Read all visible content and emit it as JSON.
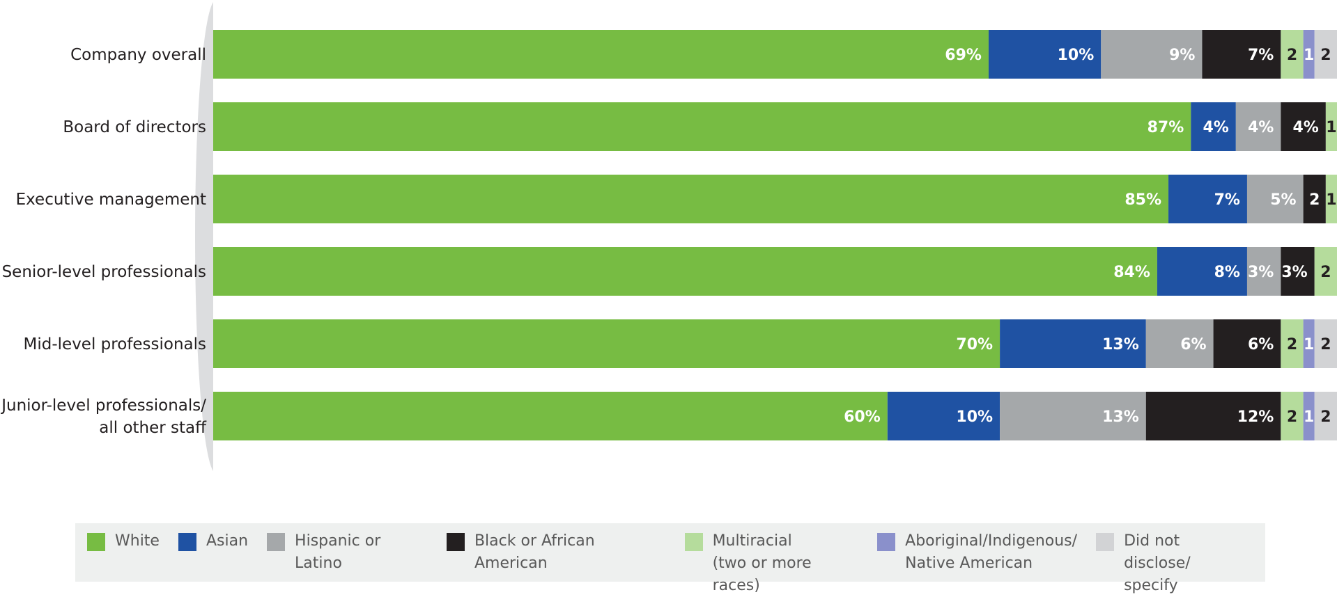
{
  "chart_data": {
    "type": "bar",
    "orientation": "horizontal",
    "stacked": true,
    "title": "",
    "xlabel": "",
    "ylabel": "",
    "categories": [
      "Company overall",
      "Board of directors",
      "Executive management",
      "Senior-level professionals",
      "Mid-level professionals",
      "Junior-level professionals/\nall other staff"
    ],
    "series": [
      {
        "name": "White",
        "color": "#77bc43",
        "label_color": "#ffffff",
        "values": [
          69,
          87,
          85,
          84,
          70,
          60
        ],
        "labels": [
          "69%",
          "87%",
          "85%",
          "84%",
          "70%",
          "60%"
        ]
      },
      {
        "name": "Asian",
        "color": "#1f52a3",
        "label_color": "#ffffff",
        "values": [
          10,
          4,
          7,
          8,
          13,
          10
        ],
        "labels": [
          "10%",
          "4%",
          "7%",
          "8%",
          "13%",
          "10%"
        ]
      },
      {
        "name": "Hispanic or Latino",
        "color": "#a5a8aa",
        "label_color": "#ffffff",
        "values": [
          9,
          4,
          5,
          3,
          6,
          13
        ],
        "labels": [
          "9%",
          "4%",
          "5%",
          "3%",
          "6%",
          "13%"
        ]
      },
      {
        "name": "Black or African American",
        "color": "#231f20",
        "label_color": "#ffffff",
        "values": [
          7,
          4,
          2,
          3,
          6,
          12
        ],
        "labels": [
          "7%",
          "4%",
          "2",
          "3%",
          "6%",
          "12%"
        ]
      },
      {
        "name": "Multiracial\n(two or more races)",
        "color": "#b5dc9c",
        "label_color": "#231f20",
        "values": [
          2,
          1,
          1,
          2,
          2,
          2
        ],
        "labels": [
          "2",
          "1",
          "1",
          "2",
          "2",
          "2"
        ]
      },
      {
        "name": "Aboriginal/Indigenous/\nNative American",
        "color": "#8a90cb",
        "label_color": "#ffffff",
        "values": [
          1,
          0,
          0,
          0,
          1,
          1
        ],
        "labels": [
          "1",
          "",
          "",
          "",
          "1",
          "1"
        ]
      },
      {
        "name": "Did not disclose/\nspecify",
        "color": "#d2d3d5",
        "label_color": "#231f20",
        "values": [
          2,
          0,
          0,
          0,
          2,
          2
        ],
        "labels": [
          "2",
          "",
          "",
          "",
          "2",
          "2"
        ]
      }
    ],
    "xlim": [
      0,
      100
    ],
    "legend_position": "bottom",
    "grid": false
  }
}
